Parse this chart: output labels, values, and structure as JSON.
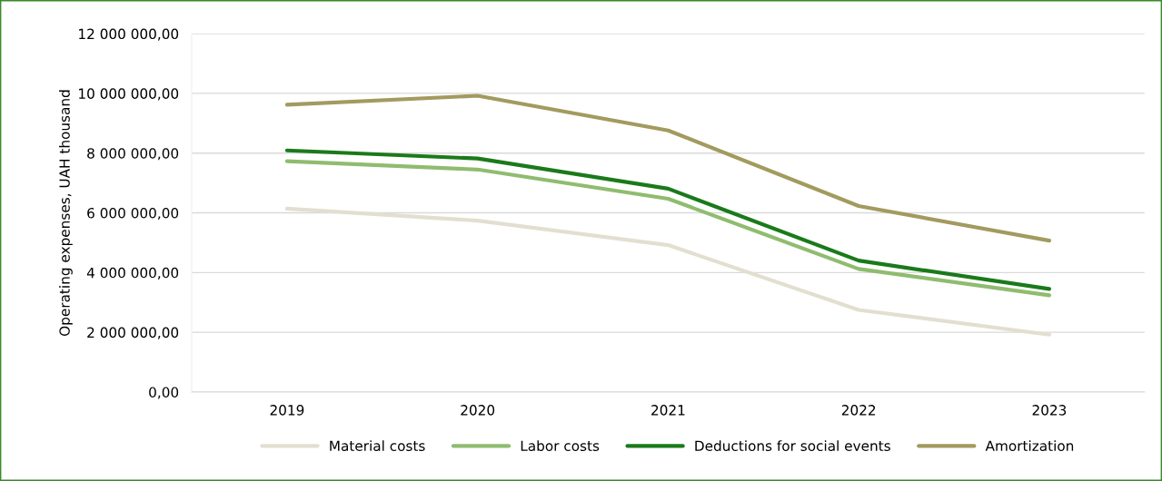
{
  "chart_data": {
    "type": "line",
    "ylabel": "Operating expenses, UAH thousand",
    "categories": [
      "2019",
      "2020",
      "2021",
      "2022",
      "2023"
    ],
    "series": [
      {
        "name": "Material costs",
        "color": "#e3dfd0",
        "values": [
          6140000,
          5740000,
          4920000,
          2750000,
          1920000
        ]
      },
      {
        "name": "Labor costs",
        "color": "#8fbc6f",
        "values": [
          7730000,
          7450000,
          6470000,
          4120000,
          3240000
        ]
      },
      {
        "name": "Deductions for social events",
        "color": "#1a7a1a",
        "values": [
          8090000,
          7820000,
          6810000,
          4400000,
          3450000
        ]
      },
      {
        "name": "Amortization",
        "color": "#a39a5f",
        "values": [
          9620000,
          9920000,
          8760000,
          6230000,
          5070000
        ]
      }
    ],
    "ylim": [
      0,
      12000000
    ],
    "yticks": [
      {
        "value": 0,
        "label": "0,00"
      },
      {
        "value": 2000000,
        "label": "2 000 000,00"
      },
      {
        "value": 4000000,
        "label": "4 000 000,00"
      },
      {
        "value": 6000000,
        "label": "6 000 000,00"
      },
      {
        "value": 8000000,
        "label": "8 000 000,00"
      },
      {
        "value": 10000000,
        "label": "10 000 000,00"
      },
      {
        "value": 12000000,
        "label": "12 000 000,00"
      }
    ],
    "grid": "y",
    "legend": "bottom",
    "marker": "none",
    "line_style": "solid"
  }
}
